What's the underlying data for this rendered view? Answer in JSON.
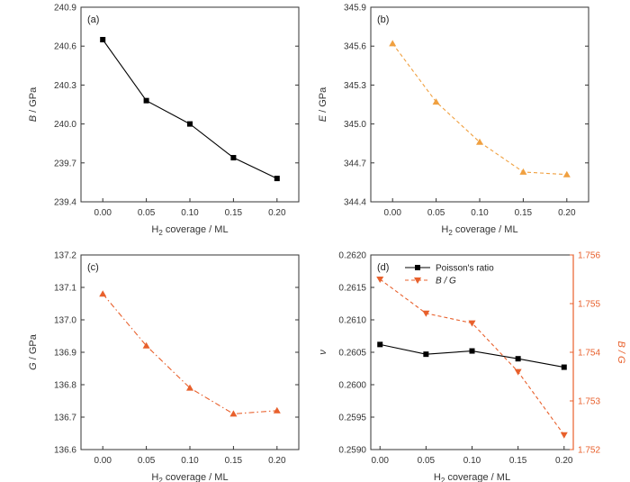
{
  "chart_data": [
    {
      "type": "line",
      "panel_label": "(a)",
      "x": [
        0.0,
        0.05,
        0.1,
        0.15,
        0.2
      ],
      "xticks": [
        "0.00",
        "0.05",
        "0.10",
        "0.15",
        "0.20"
      ],
      "xlim": [
        -0.025,
        0.225
      ],
      "xlabel": {
        "prefix": "H",
        "sub": "2",
        "suffix": " coverage / ML"
      },
      "ylabel": {
        "italic": "B",
        "rest": " / GPa"
      },
      "ylim": [
        239.4,
        240.9
      ],
      "yticks": [
        "239.4",
        "239.7",
        "240.0",
        "240.3",
        "240.6",
        "240.9"
      ],
      "series": [
        {
          "values": [
            240.65,
            240.18,
            240.0,
            239.74,
            239.58
          ],
          "color": "#000000",
          "marker": "square",
          "dash": "solid"
        }
      ]
    },
    {
      "type": "line",
      "panel_label": "(b)",
      "x": [
        0.0,
        0.05,
        0.1,
        0.15,
        0.2
      ],
      "xticks": [
        "0.00",
        "0.05",
        "0.10",
        "0.15",
        "0.20"
      ],
      "xlim": [
        -0.025,
        0.225
      ],
      "xlabel": {
        "prefix": "H",
        "sub": "2",
        "suffix": " coverage / ML"
      },
      "ylabel": {
        "italic": "E",
        "rest": " / GPa"
      },
      "ylim": [
        344.4,
        345.9
      ],
      "yticks": [
        "344.4",
        "344.7",
        "345.0",
        "345.3",
        "345.6",
        "345.9"
      ],
      "series": [
        {
          "values": [
            345.62,
            345.17,
            344.86,
            344.63,
            344.61
          ],
          "color": "#f0a040",
          "marker": "triangle-up",
          "dash": "dashed"
        }
      ]
    },
    {
      "type": "line",
      "panel_label": "(c)",
      "x": [
        0.0,
        0.05,
        0.1,
        0.15,
        0.2
      ],
      "xticks": [
        "0.00",
        "0.05",
        "0.10",
        "0.15",
        "0.20"
      ],
      "xlim": [
        -0.025,
        0.225
      ],
      "xlabel": {
        "prefix": "H",
        "sub": "2",
        "suffix": " coverage / ML"
      },
      "ylabel": {
        "italic": "G",
        "rest": " / GPa"
      },
      "ylim": [
        136.6,
        137.2
      ],
      "yticks": [
        "136.6",
        "136.7",
        "136.8",
        "136.9",
        "137.0",
        "137.1",
        "137.2"
      ],
      "series": [
        {
          "values": [
            137.08,
            136.92,
            136.79,
            136.71,
            136.72
          ],
          "color": "#e8602c",
          "marker": "triangle-up",
          "dash": "dashdot"
        }
      ]
    },
    {
      "type": "line",
      "panel_label": "(d)",
      "x": [
        0.0,
        0.05,
        0.1,
        0.15,
        0.2
      ],
      "xticks": [
        "0.00",
        "0.05",
        "0.10",
        "0.15",
        "0.20"
      ],
      "xlim": [
        -0.01,
        0.21
      ],
      "xlabel": {
        "prefix": "H",
        "sub": "2",
        "suffix": " coverage / ML"
      },
      "ylabel": {
        "italic": "ν",
        "rest": ""
      },
      "ylim": [
        0.259,
        0.262
      ],
      "yticks": [
        "0.2590",
        "0.2595",
        "0.2600",
        "0.2605",
        "0.2610",
        "0.2615",
        "0.2620"
      ],
      "ylabel_right": {
        "italic": "B / G",
        "rest": ""
      },
      "ylim_right": [
        1.752,
        1.756
      ],
      "yticks_right": [
        "1.752",
        "1.753",
        "1.754",
        "1.755",
        "1.756"
      ],
      "legend_position": "top-right",
      "series": [
        {
          "name": "Poisson's ratio",
          "axis": "left",
          "values": [
            0.26062,
            0.26047,
            0.26052,
            0.2604,
            0.26027
          ],
          "color": "#000000",
          "marker": "square",
          "dash": "solid"
        },
        {
          "name": "B / G",
          "name_italic": true,
          "axis": "right",
          "values": [
            1.7555,
            1.7548,
            1.7546,
            1.7536,
            1.7523
          ],
          "color": "#e8602c",
          "marker": "triangle-down",
          "dash": "dashed"
        }
      ]
    }
  ]
}
